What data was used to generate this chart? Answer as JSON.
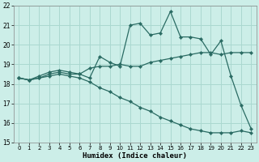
{
  "xlabel": "Humidex (Indice chaleur)",
  "bg_color": "#cceee8",
  "line_color": "#2a6b63",
  "grid_color": "#aad8d0",
  "xlim": [
    -0.5,
    23.5
  ],
  "ylim": [
    15,
    22
  ],
  "yticks": [
    15,
    16,
    17,
    18,
    19,
    20,
    21,
    22
  ],
  "xticks": [
    0,
    1,
    2,
    3,
    4,
    5,
    6,
    7,
    8,
    9,
    10,
    11,
    12,
    13,
    14,
    15,
    16,
    17,
    18,
    19,
    20,
    21,
    22,
    23
  ],
  "series": [
    {
      "x": [
        0,
        1,
        2,
        3,
        4,
        5,
        6,
        7,
        8,
        9,
        10,
        11,
        12,
        13,
        14,
        15,
        16,
        17,
        18,
        19,
        20,
        21,
        22,
        23
      ],
      "y": [
        18.3,
        18.2,
        18.3,
        18.5,
        18.6,
        18.5,
        18.5,
        18.3,
        19.4,
        19.1,
        18.9,
        21.0,
        21.1,
        20.5,
        20.6,
        21.7,
        20.4,
        20.4,
        20.3,
        19.5,
        20.2,
        18.4,
        16.9,
        15.7
      ]
    },
    {
      "x": [
        0,
        1,
        2,
        3,
        4,
        5,
        6,
        7,
        8,
        9,
        10,
        11,
        12,
        13,
        14,
        15,
        16,
        17,
        18,
        19,
        20,
        21,
        22,
        23
      ],
      "y": [
        18.3,
        18.2,
        18.4,
        18.6,
        18.7,
        18.6,
        18.5,
        18.8,
        18.9,
        18.9,
        19.0,
        18.9,
        18.9,
        19.1,
        19.2,
        19.3,
        19.4,
        19.5,
        19.6,
        19.6,
        19.5,
        19.6,
        19.6,
        19.6
      ]
    },
    {
      "x": [
        0,
        1,
        2,
        3,
        4,
        5,
        6,
        7,
        8,
        9,
        10,
        11,
        12,
        13,
        14,
        15,
        16,
        17,
        18,
        19,
        20,
        21,
        22,
        23
      ],
      "y": [
        18.3,
        18.2,
        18.3,
        18.4,
        18.5,
        18.4,
        18.3,
        18.1,
        17.8,
        17.6,
        17.3,
        17.1,
        16.8,
        16.6,
        16.3,
        16.1,
        15.9,
        15.7,
        15.6,
        15.5,
        15.5,
        15.5,
        15.6,
        15.5
      ]
    }
  ]
}
